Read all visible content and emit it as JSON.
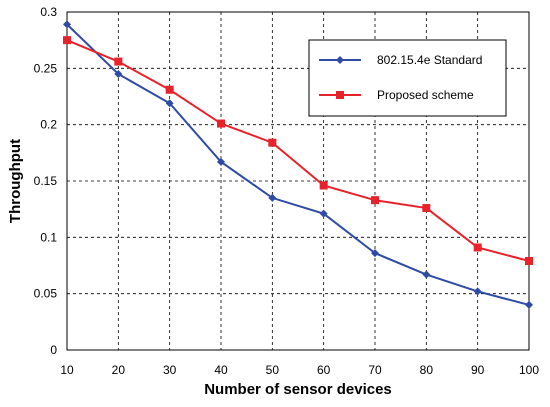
{
  "chart_data": {
    "type": "line",
    "title": "",
    "xlabel": "Number of sensor devices",
    "ylabel": "Throughput",
    "x": [
      10,
      20,
      30,
      40,
      50,
      60,
      70,
      80,
      90,
      100
    ],
    "xlim": [
      10,
      100
    ],
    "ylim": [
      0,
      0.3
    ],
    "xticks": [
      "10",
      "20",
      "30",
      "40",
      "50",
      "60",
      "70",
      "80",
      "90",
      "100"
    ],
    "yticks": [
      {
        "value": 0,
        "label": "0"
      },
      {
        "value": 0.05,
        "label": "0.05"
      },
      {
        "value": 0.1,
        "label": "0.1"
      },
      {
        "value": 0.15,
        "label": "0.15"
      },
      {
        "value": 0.2,
        "label": "0.2"
      },
      {
        "value": 0.25,
        "label": "0.25"
      },
      {
        "value": 0.3,
        "label": "0.3"
      }
    ],
    "grid": true,
    "legend_position": "top-right",
    "series": [
      {
        "name": "802.15.4e Standard",
        "color": "#2E4BA6",
        "marker": "diamond",
        "values": [
          0.289,
          0.245,
          0.219,
          0.167,
          0.135,
          0.121,
          0.086,
          0.067,
          0.052,
          0.04
        ]
      },
      {
        "name": "Proposed scheme",
        "color": "#E8222A",
        "marker": "square",
        "values": [
          0.275,
          0.256,
          0.231,
          0.201,
          0.184,
          0.146,
          0.133,
          0.126,
          0.091,
          0.079
        ]
      }
    ]
  }
}
